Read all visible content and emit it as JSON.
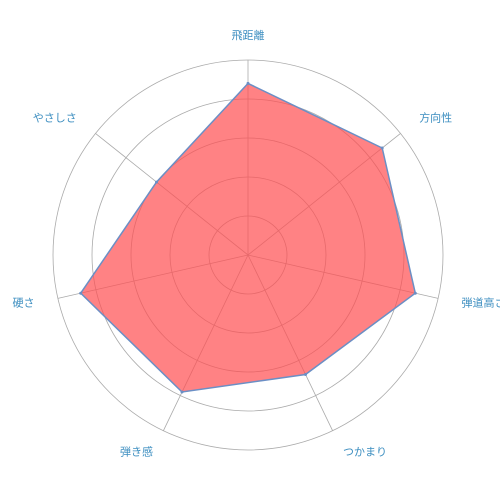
{
  "chart_data": {
    "type": "radar",
    "title": "",
    "axes": [
      "飛距離",
      "方向性",
      "弾道高さ",
      "つかまり",
      "弾き感",
      "硬さ",
      "やさしさ"
    ],
    "series": [
      {
        "values": [
          4.4,
          4.4,
          4.4,
          3.4,
          3.9,
          4.4,
          3.0
        ]
      }
    ],
    "range": [
      0,
      5
    ],
    "rings": 4,
    "grid": true,
    "colors": {
      "fill": "#ff4d50",
      "fill_opacity": 0.7,
      "stroke": "#6b8fc5",
      "grid": "#aaaaaa",
      "label": "#3c8ec0"
    }
  }
}
